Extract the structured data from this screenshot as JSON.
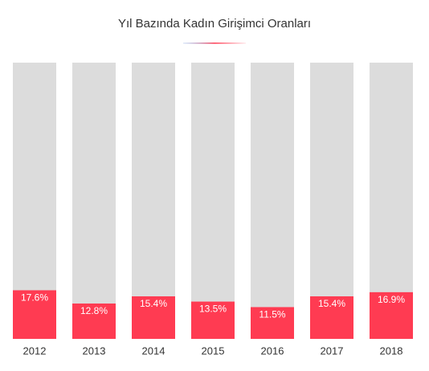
{
  "chart_data": {
    "type": "bar",
    "title": "Yıl Bazında Kadın Girişimci Oranları",
    "categories": [
      "2012",
      "2013",
      "2014",
      "2015",
      "2016",
      "2017",
      "2018"
    ],
    "values": [
      17.6,
      12.8,
      15.4,
      13.5,
      11.5,
      15.4,
      16.9
    ],
    "value_labels": [
      "17.6%",
      "12.8%",
      "15.4%",
      "13.5%",
      "11.5%",
      "15.4%",
      "16.9%"
    ],
    "color": "#ff3b52",
    "track_color": "#dcdcdc",
    "ylim": [
      0,
      100
    ]
  }
}
